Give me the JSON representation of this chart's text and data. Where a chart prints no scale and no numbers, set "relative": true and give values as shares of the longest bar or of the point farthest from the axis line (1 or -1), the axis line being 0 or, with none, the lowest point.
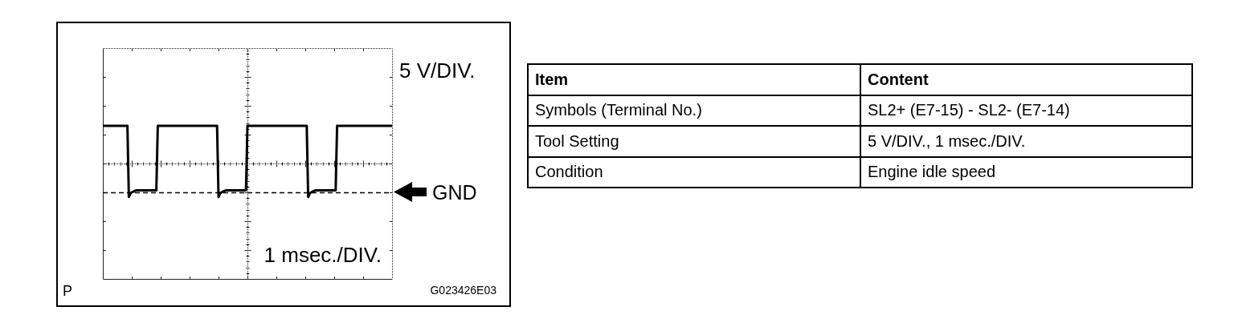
{
  "chart_data": [
    {
      "type": "line",
      "relative": true,
      "categories": [
        null,
        null,
        null,
        null,
        null,
        null,
        null,
        null,
        null,
        null,
        null,
        null,
        null,
        null,
        null,
        null,
        null,
        null,
        null,
        null,
        null,
        null,
        null,
        null,
        null,
        null,
        null,
        null,
        null,
        null,
        null,
        null,
        null,
        null,
        null,
        null,
        null,
        null,
        null,
        null,
        null,
        null,
        null,
        null,
        null,
        null,
        null,
        null,
        null,
        null,
        null,
        null,
        null,
        null,
        null,
        null,
        null,
        null,
        null,
        null,
        null,
        null,
        null,
        null,
        null,
        null,
        null,
        null,
        null,
        null,
        null,
        null,
        null,
        null,
        null,
        null,
        null,
        null,
        null,
        null,
        null,
        null,
        null,
        null,
        null,
        null,
        null,
        null,
        null,
        null,
        null,
        null,
        null,
        null,
        null,
        null,
        null,
        null,
        null,
        null,
        null,
        null,
        null,
        null,
        null,
        null,
        null,
        null,
        null,
        null,
        null,
        null,
        null,
        null,
        null,
        null,
        null,
        null,
        null,
        null,
        null,
        null,
        null,
        null,
        null,
        null,
        null,
        null,
        null,
        null,
        null,
        null,
        null,
        null,
        null,
        null,
        null,
        null,
        null,
        null,
        null,
        null,
        null,
        null,
        null,
        null,
        null,
        null,
        null,
        null,
        null,
        null,
        null,
        null,
        null,
        null,
        null,
        null,
        null,
        null,
        null,
        null,
        null,
        null,
        null,
        null,
        null,
        null,
        null,
        null,
        null,
        null,
        null,
        null,
        null,
        null,
        null,
        null,
        null,
        null,
        null,
        null,
        null,
        null,
        null,
        null,
        null,
        null,
        null,
        null,
        null,
        null,
        null,
        null,
        null,
        null,
        null,
        null,
        null,
        null,
        null
      ],
      "series": [
        {
          "color": "#000000",
          "values": [
            1,
            1,
            1,
            1,
            1,
            1,
            1,
            1,
            1,
            1,
            1,
            1,
            1,
            1,
            1,
            1,
            1,
            1,
            -0.07,
            -0.02,
            0,
            0.01,
            0.02,
            0.03,
            0.03,
            0.03,
            0.03,
            0.03,
            0.03,
            0.03,
            0.03,
            0.03,
            0.03,
            0.03,
            0.03,
            0.03,
            0.03,
            0.03,
            1,
            1,
            1,
            1,
            1,
            1,
            1,
            1,
            1,
            1,
            1,
            1,
            1,
            1,
            1,
            1,
            1,
            1,
            1,
            1,
            1,
            1,
            1,
            1,
            1,
            1,
            1,
            1,
            1,
            1,
            1,
            1,
            1,
            1,
            1,
            1,
            1,
            1,
            1,
            1,
            1,
            1,
            -0.07,
            -0.02,
            0,
            0.01,
            0.02,
            0.03,
            0.03,
            0.03,
            0.03,
            0.03,
            0.03,
            0.03,
            0.03,
            0.03,
            0.03,
            0.03,
            0.03,
            0.03,
            0.03,
            0.03,
            1,
            1,
            1,
            1,
            1,
            1,
            1,
            1,
            1,
            1,
            1,
            1,
            1,
            1,
            1,
            1,
            1,
            1,
            1,
            1,
            1,
            1,
            1,
            1,
            1,
            1,
            1,
            1,
            1,
            1,
            1,
            1,
            1,
            1,
            1,
            1,
            1,
            1,
            1,
            1,
            1,
            1,
            -0.07,
            -0.02,
            0,
            0.01,
            0.02,
            0.03,
            0.03,
            0.03,
            0.03,
            0.03,
            0.03,
            0.03,
            0.03,
            0.03,
            0.03,
            0.03,
            0.03,
            0.03,
            0.03,
            0.03,
            1,
            1,
            1,
            1,
            1,
            1,
            1,
            1,
            1,
            1,
            1,
            1,
            1,
            1,
            1,
            1,
            1,
            1,
            1,
            1,
            1,
            1,
            1,
            1,
            1,
            1,
            1,
            1,
            1,
            1,
            1,
            1,
            1,
            1,
            1,
            1,
            1,
            1,
            1
          ]
        }
      ],
      "ref_lines": [
        {
          "axis": "y",
          "value": 0,
          "label": "GND",
          "line_style": "dashed"
        }
      ],
      "annotations": [
        "5 V/DIV.",
        "1 msec./DIV.",
        "P",
        "G023426E03"
      ]
    },
    {
      "type": "other",
      "annotations": [
        "Item",
        "Content",
        "Symbols (Terminal No.)",
        "SL2+ (E7-15) - SL2- (E7-14)",
        "Tool Setting",
        "5 V/DIV., 1 msec./DIV.",
        "Condition",
        "Engine idle speed"
      ]
    }
  ]
}
